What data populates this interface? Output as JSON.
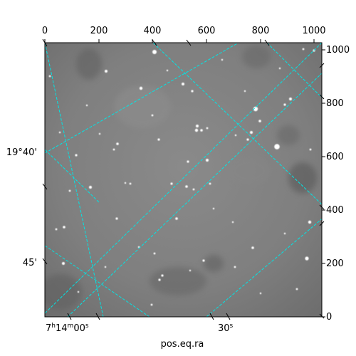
{
  "plot": {
    "xlabel": "pos.eq.ra",
    "top_ticks": [
      "0",
      "200",
      "400",
      "600",
      "800",
      "1000"
    ],
    "right_ticks": [
      "0",
      "200",
      "400",
      "600",
      "800",
      "1000"
    ],
    "left_ticks": [
      "19°40'",
      "45'"
    ],
    "bottom_ticks": [
      {
        "h": "7",
        "m": "14",
        "s": "00"
      },
      {
        "s": "30"
      }
    ],
    "grid_color": "#00e5e5",
    "image_style": "grayscale astronomical sky image"
  }
}
